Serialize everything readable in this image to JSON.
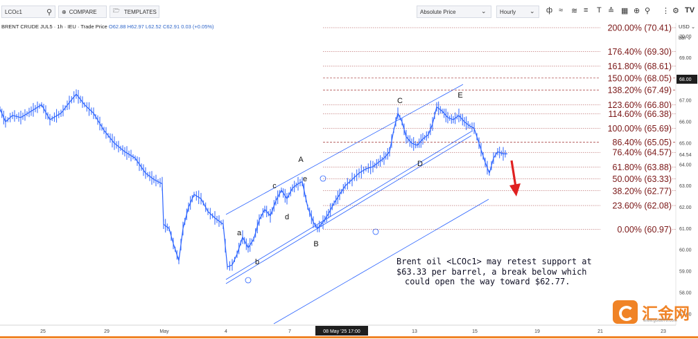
{
  "toolbar": {
    "symbol": "LCOc1",
    "compare_label": "COMPARE",
    "templates_label": "TEMPLATES",
    "price_type": "Absolute Price",
    "interval": "Hourly"
  },
  "header": {
    "title": "BRENT CRUDE JUL5 · 1h · IEU · Trade Price",
    "open": "O62.88",
    "high": "H62.97",
    "low": "L62.52",
    "close": "C62.91",
    "change": "0.03 (+0.05%)"
  },
  "right_panel": {
    "currency": "USD",
    "unit": "bbl"
  },
  "colors": {
    "candle": "#2962ff",
    "fib_line": "#a03030",
    "fib_text": "#7a1616",
    "arrow": "#e02020",
    "brand": "#f08326"
  },
  "chart_data": {
    "type": "line",
    "ylim": [
      56.8,
      70.7
    ],
    "y_ticks": [
      57.0,
      58.0,
      59.0,
      60.0,
      61.0,
      62.0,
      63.0,
      64.0,
      65.0,
      66.0,
      67.0,
      69.0,
      70.0
    ],
    "current_price": "68.00",
    "last_price": "64.54",
    "x_tick_labels": [
      "25",
      "29",
      "May",
      "4",
      "7",
      "08 May '25   17:00",
      "13",
      "15",
      "19",
      "21",
      "23"
    ],
    "price_path": [
      [
        0,
        66.6
      ],
      [
        8,
        66.0
      ],
      [
        18,
        66.3
      ],
      [
        30,
        66.2
      ],
      [
        45,
        66.5
      ],
      [
        60,
        66.8
      ],
      [
        72,
        66.1
      ],
      [
        88,
        66.4
      ],
      [
        100,
        66.9
      ],
      [
        110,
        67.3
      ],
      [
        122,
        66.8
      ],
      [
        135,
        66.4
      ],
      [
        150,
        65.6
      ],
      [
        165,
        65.0
      ],
      [
        180,
        64.6
      ],
      [
        195,
        64.3
      ],
      [
        210,
        63.6
      ],
      [
        222,
        63.3
      ],
      [
        234,
        63.1
      ],
      [
        236,
        61.2
      ],
      [
        244,
        61.0
      ],
      [
        250,
        60.3
      ],
      [
        258,
        59.5
      ],
      [
        264,
        61.0
      ],
      [
        272,
        62.0
      ],
      [
        280,
        62.6
      ],
      [
        290,
        62.4
      ],
      [
        300,
        61.8
      ],
      [
        310,
        61.5
      ],
      [
        322,
        61.2
      ],
      [
        328,
        59.2
      ],
      [
        335,
        59.3
      ],
      [
        342,
        59.8
      ],
      [
        350,
        60.6
      ],
      [
        358,
        60.1
      ],
      [
        366,
        60.5
      ],
      [
        374,
        61.4
      ],
      [
        382,
        61.9
      ],
      [
        390,
        61.6
      ],
      [
        398,
        62.3
      ],
      [
        406,
        62.8
      ],
      [
        414,
        62.4
      ],
      [
        422,
        62.9
      ],
      [
        430,
        63.1
      ],
      [
        436,
        63.2
      ],
      [
        444,
        62.0
      ],
      [
        452,
        61.3
      ],
      [
        458,
        61.0
      ],
      [
        466,
        61.3
      ],
      [
        474,
        61.7
      ],
      [
        482,
        62.2
      ],
      [
        490,
        62.6
      ],
      [
        498,
        63.0
      ],
      [
        508,
        63.3
      ],
      [
        518,
        63.6
      ],
      [
        528,
        63.8
      ],
      [
        538,
        63.9
      ],
      [
        546,
        64.1
      ],
      [
        554,
        64.3
      ],
      [
        562,
        64.6
      ],
      [
        568,
        65.6
      ],
      [
        574,
        66.4
      ],
      [
        580,
        66.0
      ],
      [
        586,
        65.3
      ],
      [
        594,
        65.0
      ],
      [
        602,
        64.9
      ],
      [
        610,
        65.2
      ],
      [
        618,
        65.4
      ],
      [
        624,
        65.9
      ],
      [
        630,
        66.7
      ],
      [
        638,
        66.5
      ],
      [
        646,
        66.2
      ],
      [
        654,
        66.1
      ],
      [
        662,
        66.3
      ],
      [
        670,
        66.0
      ],
      [
        678,
        65.8
      ],
      [
        684,
        65.7
      ],
      [
        688,
        65.3
      ],
      [
        694,
        64.7
      ],
      [
        700,
        64.1
      ],
      [
        706,
        63.6
      ],
      [
        712,
        64.3
      ],
      [
        718,
        64.6
      ],
      [
        726,
        64.5
      ],
      [
        732,
        64.5
      ]
    ],
    "fib_levels": [
      {
        "label": "200.00% (70.41)",
        "value": 70.41
      },
      {
        "label": "176.40% (69.30)",
        "value": 69.3
      },
      {
        "label": "161.80% (68.61)",
        "value": 68.61
      },
      {
        "label": "150.00% (68.05)",
        "value": 68.05
      },
      {
        "label": "138.20% (67.49)",
        "value": 67.49
      },
      {
        "label": "123.60% (66.80)",
        "value": 66.8
      },
      {
        "label": "114.60% (66.38)",
        "value": 66.38
      },
      {
        "label": "100.00% (65.69)",
        "value": 65.69
      },
      {
        "label": "86.40% (65.05)",
        "value": 65.05
      },
      {
        "label": "76.40% (64.57)",
        "value": 64.57
      },
      {
        "label": "61.80% (63.88)",
        "value": 63.88
      },
      {
        "label": "50.00% (63.33)",
        "value": 63.33
      },
      {
        "label": "38.20% (62.77)",
        "value": 62.77
      },
      {
        "label": "23.60% (62.08)",
        "value": 62.08
      },
      {
        "label": "0.00% (60.97)",
        "value": 60.97
      }
    ],
    "wave_labels": [
      "a",
      "b",
      "c",
      "d",
      "e",
      "A",
      "B",
      "C",
      "D",
      "E"
    ],
    "annotation": [
      "Brent oil <LCOc1> may retest support at",
      "$63.33 per barrel, a break below which",
      "could open the way toward $62.77."
    ]
  },
  "watermark": {
    "brand": "汇金网",
    "url": "www.gold678.com"
  }
}
